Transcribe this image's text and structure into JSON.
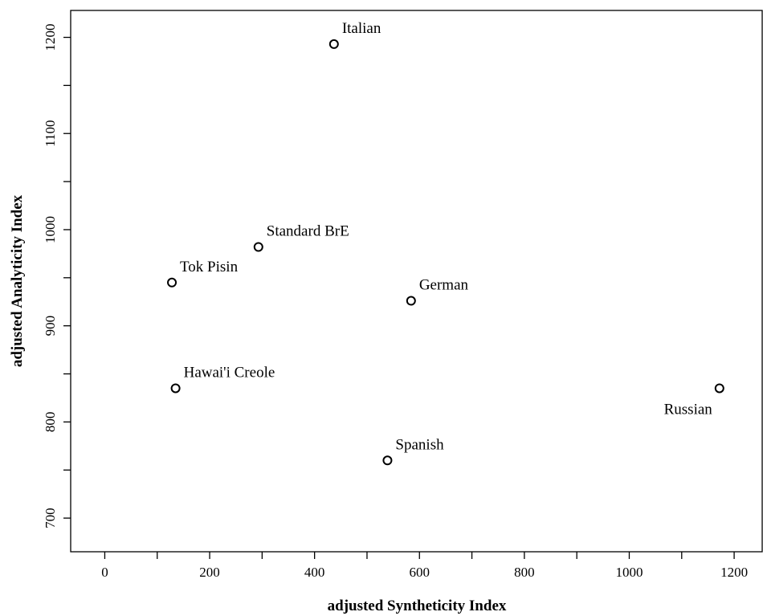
{
  "chart_data": {
    "type": "scatter",
    "title": "",
    "xlabel": "adjusted Syntheticity Index",
    "ylabel": "adjusted Analyticity Index",
    "xlim": [
      -65,
      1255
    ],
    "ylim": [
      665,
      1228
    ],
    "x_ticks": [
      0,
      200,
      400,
      600,
      800,
      1000,
      1200
    ],
    "x_minor_ticks": [
      100,
      300,
      500,
      700,
      900,
      1100
    ],
    "y_ticks": [
      700,
      800,
      900,
      1000,
      1100,
      1200
    ],
    "y_minor_ticks": [
      750,
      850,
      950,
      1050,
      1150
    ],
    "grid": false,
    "legend": "none",
    "points": [
      {
        "label": "Italian",
        "x": 437,
        "y": 1193,
        "label_side": "right"
      },
      {
        "label": "Standard BrE",
        "x": 293,
        "y": 982,
        "label_side": "right"
      },
      {
        "label": "Tok Pisin",
        "x": 128,
        "y": 945,
        "label_side": "right"
      },
      {
        "label": "German",
        "x": 584,
        "y": 926,
        "label_side": "right"
      },
      {
        "label": "Hawai'i Creole",
        "x": 135,
        "y": 835,
        "label_side": "right"
      },
      {
        "label": "Russian",
        "x": 1172,
        "y": 835,
        "label_side": "left"
      },
      {
        "label": "Spanish",
        "x": 539,
        "y": 760,
        "label_side": "right"
      }
    ]
  }
}
